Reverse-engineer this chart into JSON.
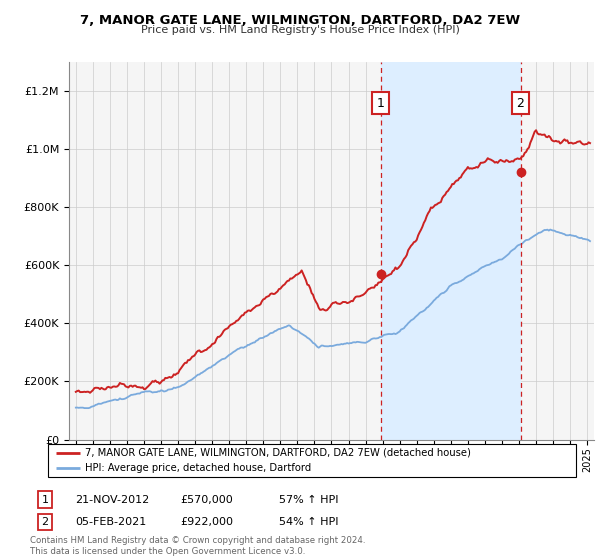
{
  "title": "7, MANOR GATE LANE, WILMINGTON, DARTFORD, DA2 7EW",
  "subtitle": "Price paid vs. HM Land Registry's House Price Index (HPI)",
  "legend_line1": "7, MANOR GATE LANE, WILMINGTON, DARTFORD, DA2 7EW (detached house)",
  "legend_line2": "HPI: Average price, detached house, Dartford",
  "annotation1_date": "21-NOV-2012",
  "annotation1_price": "£570,000",
  "annotation1_hpi": "57% ↑ HPI",
  "annotation2_date": "05-FEB-2021",
  "annotation2_price": "£922,000",
  "annotation2_hpi": "54% ↑ HPI",
  "footer": "Contains HM Land Registry data © Crown copyright and database right 2024.\nThis data is licensed under the Open Government Licence v3.0.",
  "sale1_year": 2012.89,
  "sale2_year": 2021.09,
  "sale1_price": 570000,
  "sale2_price": 922000,
  "red_color": "#cc2222",
  "blue_color": "#7aaadd",
  "shade_color": "#ddeeff",
  "ylim_max": 1300000,
  "bg_color": "#f5f5f5"
}
